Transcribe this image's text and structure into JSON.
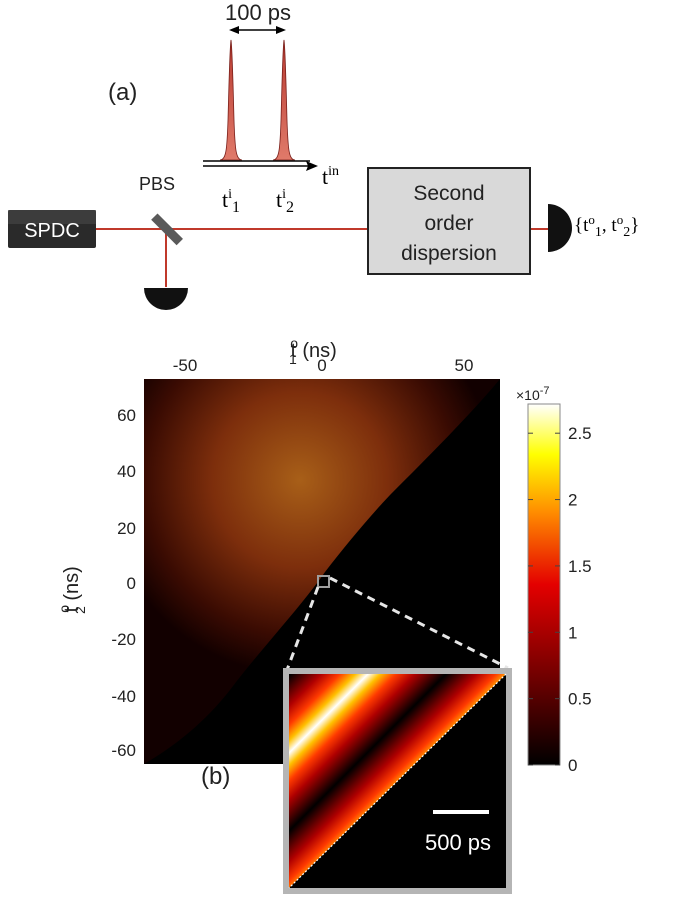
{
  "panel_a": {
    "label": "(a)",
    "pulse_spacing": "100 ps",
    "source": "SPDC",
    "splitter": "PBS",
    "dispersion": [
      "Second",
      "order",
      "dispersion"
    ],
    "time_axis": {
      "base": "t",
      "sup": "in"
    },
    "pulse_times": [
      {
        "base": "t",
        "sup": "i",
        "sub": "1"
      },
      {
        "base": "t",
        "sup": "i",
        "sub": "2"
      }
    ],
    "output": {
      "open": "{",
      "base": "t",
      "sup": "o",
      "sub1": "1",
      "sep": ", ",
      "sub2": "2",
      "close": "}"
    }
  },
  "panel_b": {
    "label": "(b)",
    "scale_bar": "500 ps",
    "colorbar_exponent": "×10",
    "colorbar_exp_power": "-7",
    "colors": {
      "low": "#000000",
      "mid": "#cc0000",
      "high": "#ffff00",
      "top": "#ffffff"
    }
  },
  "chart_data": {
    "type": "heatmap",
    "title": "",
    "xlabel": {
      "base": "t",
      "sup": "o",
      "sub": "1",
      "unit": " (ns)"
    },
    "ylabel": {
      "base": "t",
      "sup": "o",
      "sub": "2",
      "unit": " (ns)"
    },
    "xlim": [
      -62,
      62
    ],
    "ylim": [
      -65,
      65
    ],
    "xticks": [
      -50,
      0,
      50
    ],
    "yticks": [
      60,
      40,
      20,
      0,
      -20,
      -40,
      -60
    ],
    "colorbar": {
      "range": [
        0,
        2.72
      ],
      "ticks": [
        "2.5",
        "2",
        "1.5",
        "1",
        "0.5",
        "0"
      ],
      "tick_values": [
        2.5,
        2,
        1.5,
        1,
        0.5,
        0
      ],
      "scale": "1e-7"
    },
    "peak_value": 2.7,
    "support": "t2 > t1",
    "inset_region": {
      "center_ns": [
        0,
        0
      ]
    }
  }
}
